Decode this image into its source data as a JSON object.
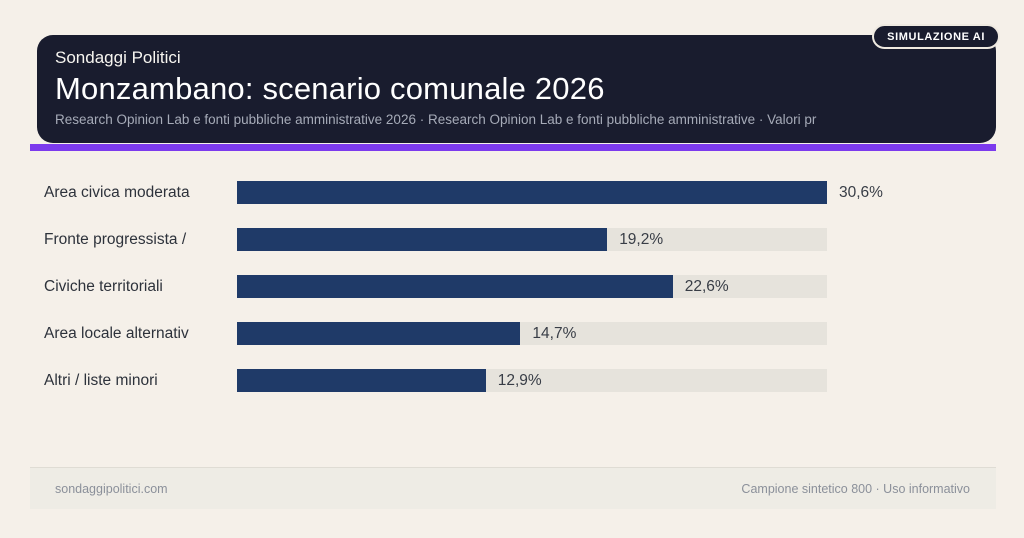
{
  "badge": {
    "label": "SIMULAZIONE AI"
  },
  "header": {
    "kicker": "Sondaggi Politici",
    "title": "Monzambano: scenario comunale 2026",
    "subtitle": "Research Opinion Lab e fonti pubbliche amministrative 2026 · Research Opinion Lab e fonti pubbliche amministrative · Valori pr"
  },
  "accent_color": "#7c3aed",
  "chart_data": {
    "type": "bar",
    "orientation": "horizontal",
    "title": "Monzambano: scenario comunale 2026",
    "categories": [
      "Area civica moderata",
      "Fronte progressista /",
      "Civiche territoriali",
      "Area locale alternativ",
      "Altri / liste minori"
    ],
    "values": [
      30.6,
      19.2,
      22.6,
      14.7,
      12.9
    ],
    "value_labels": [
      "30,6%",
      "19,2%",
      "22,6%",
      "14,7%",
      "12,9%"
    ],
    "unit": "%",
    "xlim": [
      0,
      30.6
    ],
    "grid": false,
    "legend": false,
    "colors": {
      "bar": "#1f3a68",
      "track": "#e6e3dc"
    }
  },
  "footer": {
    "left": "sondaggipolitici.com",
    "right": "Campione sintetico 800 · Uso informativo"
  }
}
